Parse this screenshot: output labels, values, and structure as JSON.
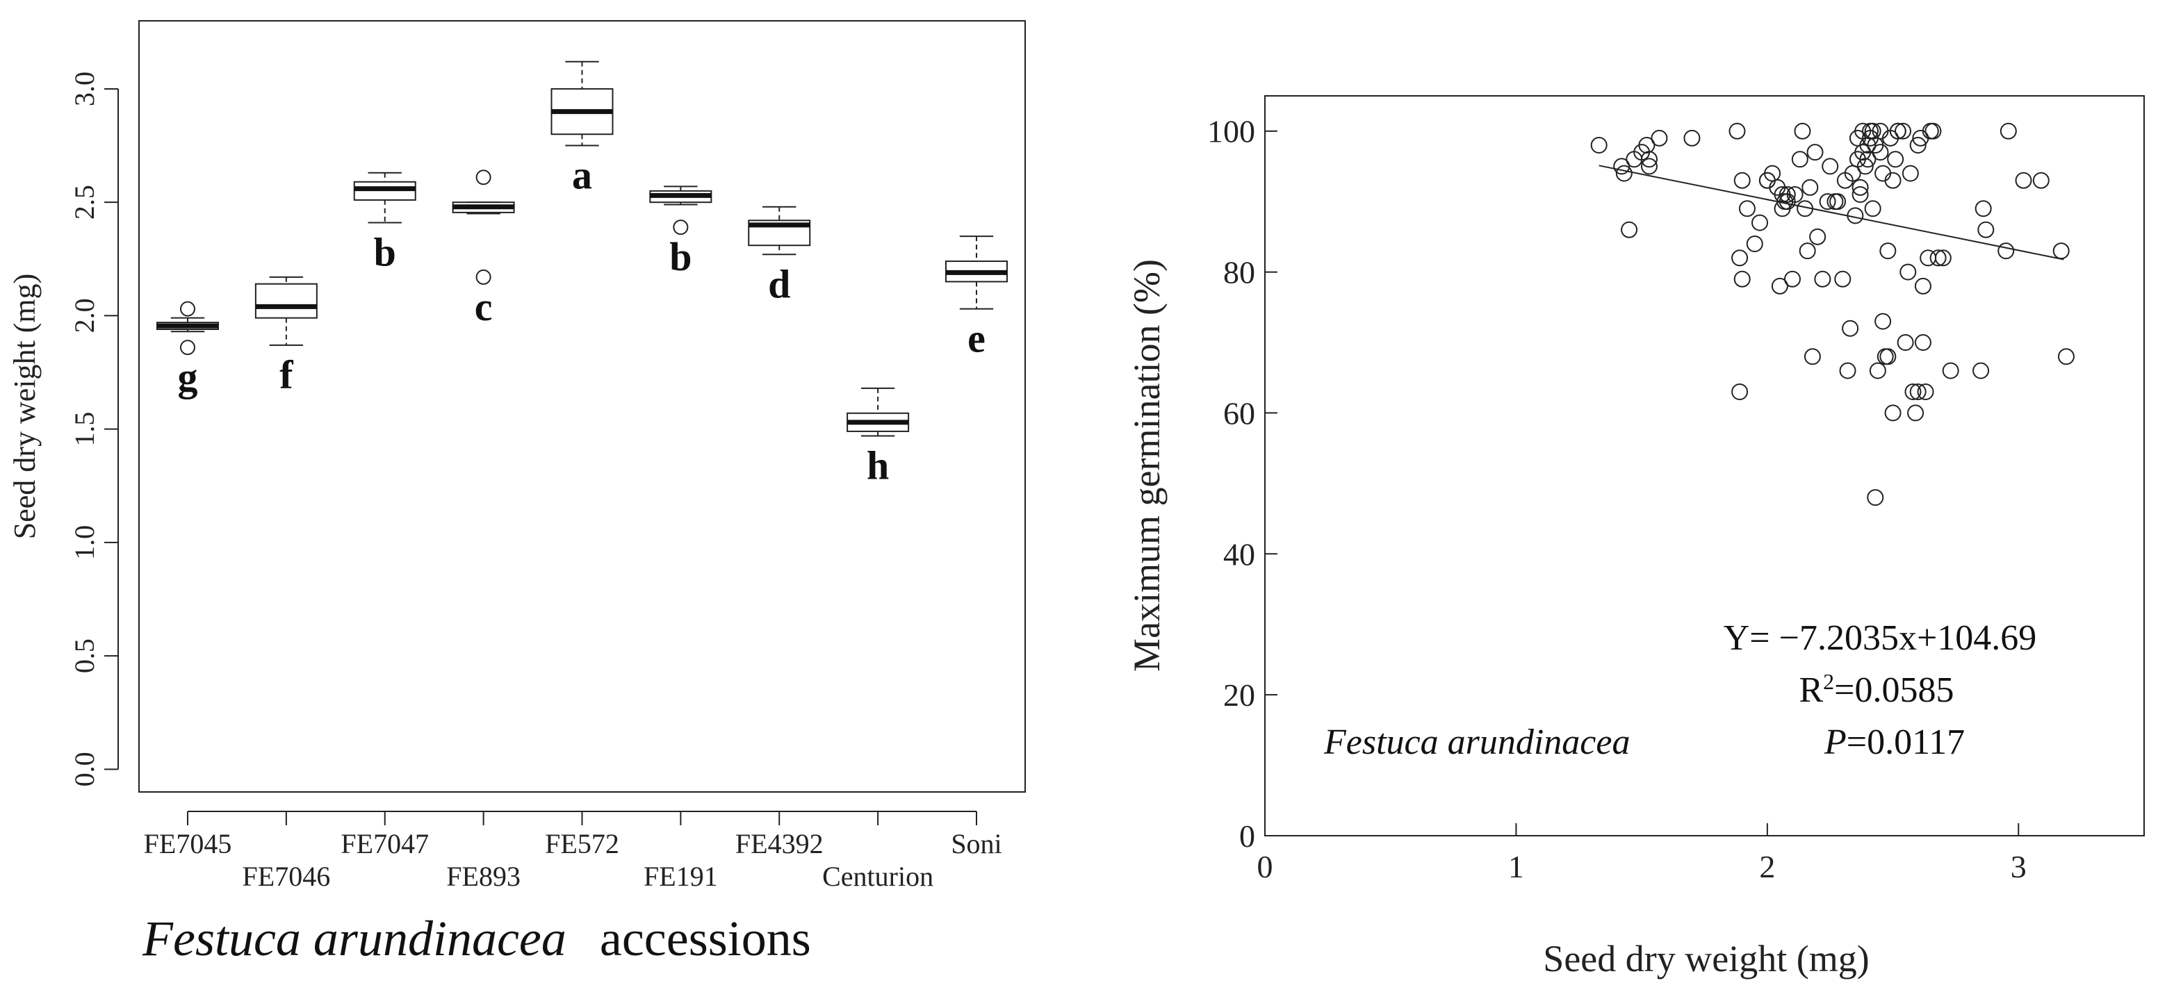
{
  "chart_data": [
    {
      "type": "box",
      "title": "",
      "ylabel": "Seed dry weight (mg)",
      "xlabel_italic": "Festuca arundinacea",
      "xlabel_rest": "accessions",
      "ylim": [
        -0.1,
        3.3
      ],
      "yticks": [
        "0.0",
        "0.5",
        "1.0",
        "1.5",
        "2.0",
        "2.5",
        "3.0"
      ],
      "ytick_values": [
        0,
        0.5,
        1.0,
        1.5,
        2.0,
        2.5,
        3.0
      ],
      "categories": [
        "FE7045",
        "FE7046",
        "FE7047",
        "FE893",
        "FE572",
        "FE191",
        "FE4392",
        "Centurion",
        "Soni"
      ],
      "boxes": [
        {
          "name": "FE7045",
          "whisker_low": 1.93,
          "q1": 1.94,
          "median": 1.955,
          "q3": 1.97,
          "whisker_high": 1.99,
          "outliers": [
            1.86,
            2.03
          ],
          "letter": "g"
        },
        {
          "name": "FE7046",
          "whisker_low": 1.87,
          "q1": 1.99,
          "median": 2.04,
          "q3": 2.14,
          "whisker_high": 2.17,
          "outliers": [],
          "letter": "f"
        },
        {
          "name": "FE7047",
          "whisker_low": 2.41,
          "q1": 2.51,
          "median": 2.56,
          "q3": 2.59,
          "whisker_high": 2.63,
          "outliers": [],
          "letter": "b"
        },
        {
          "name": "FE893",
          "whisker_low": 2.45,
          "q1": 2.455,
          "median": 2.48,
          "q3": 2.5,
          "whisker_high": 2.5,
          "outliers": [
            2.17,
            2.61
          ],
          "letter": "c"
        },
        {
          "name": "FE572",
          "whisker_low": 2.75,
          "q1": 2.8,
          "median": 2.9,
          "q3": 3.0,
          "whisker_high": 3.12,
          "outliers": [],
          "letter": "a"
        },
        {
          "name": "FE191",
          "whisker_low": 2.49,
          "q1": 2.5,
          "median": 2.53,
          "q3": 2.55,
          "whisker_high": 2.57,
          "outliers": [
            2.39
          ],
          "letter": "b"
        },
        {
          "name": "FE4392",
          "whisker_low": 2.27,
          "q1": 2.31,
          "median": 2.4,
          "q3": 2.42,
          "whisker_high": 2.48,
          "outliers": [],
          "letter": "d"
        },
        {
          "name": "Centurion",
          "whisker_low": 1.47,
          "q1": 1.49,
          "median": 1.53,
          "q3": 1.57,
          "whisker_high": 1.68,
          "outliers": [],
          "letter": "h"
        },
        {
          "name": "Soni",
          "whisker_low": 2.03,
          "q1": 2.15,
          "median": 2.19,
          "q3": 2.24,
          "whisker_high": 2.35,
          "outliers": [],
          "letter": "e"
        }
      ]
    },
    {
      "type": "scatter",
      "xlabel": "Seed dry weight (mg)",
      "ylabel": "Maximum germination (%)",
      "xlim": [
        0,
        3.5
      ],
      "ylim": [
        0,
        105
      ],
      "xticks": [
        "0",
        "1",
        "2",
        "3"
      ],
      "xtick_values": [
        0,
        1,
        2,
        3
      ],
      "yticks": [
        "0",
        "20",
        "40",
        "60",
        "80",
        "100"
      ],
      "ytick_values": [
        0,
        20,
        40,
        60,
        80,
        100
      ],
      "fit": {
        "slope": -7.2035,
        "intercept": 104.69,
        "x_range": [
          1.33,
          3.18
        ]
      },
      "equation": "Y= −7.2035x+104.69",
      "r2_prefix": "R",
      "r2_sup": "2",
      "r2_value": "=0.0585",
      "p_label": "P",
      "p_value": "=0.0117",
      "species": "Festuca arundinacea",
      "x": [
        1.33,
        1.42,
        1.43,
        1.45,
        1.47,
        1.5,
        1.52,
        1.53,
        1.53,
        1.57,
        1.7,
        1.88,
        1.89,
        1.89,
        1.9,
        1.9,
        1.92,
        1.95,
        1.97,
        2.0,
        2.0,
        2.02,
        2.04,
        2.05,
        2.06,
        2.06,
        2.07,
        2.08,
        2.08,
        2.1,
        2.11,
        2.13,
        2.14,
        2.15,
        2.16,
        2.17,
        2.18,
        2.19,
        2.2,
        2.22,
        2.24,
        2.25,
        2.27,
        2.28,
        2.3,
        2.31,
        2.32,
        2.33,
        2.34,
        2.35,
        2.36,
        2.36,
        2.37,
        2.37,
        2.38,
        2.38,
        2.39,
        2.4,
        2.4,
        2.41,
        2.41,
        2.42,
        2.42,
        2.43,
        2.43,
        2.44,
        2.45,
        2.45,
        2.46,
        2.46,
        2.47,
        2.48,
        2.48,
        2.49,
        2.5,
        2.5,
        2.51,
        2.52,
        2.52,
        2.54,
        2.55,
        2.56,
        2.57,
        2.58,
        2.59,
        2.6,
        2.6,
        2.61,
        2.62,
        2.62,
        2.63,
        2.64,
        2.65,
        2.66,
        2.68,
        2.7,
        2.73,
        2.85,
        2.86,
        2.87,
        2.95,
        2.96,
        3.02,
        3.09,
        3.17,
        3.19
      ],
      "y": [
        98,
        95,
        94,
        86,
        96,
        97,
        98,
        96,
        95,
        99,
        99,
        100,
        82,
        63,
        93,
        79,
        89,
        84,
        87,
        93,
        93,
        94,
        92,
        78,
        89,
        91,
        90,
        91,
        90,
        79,
        91,
        96,
        100,
        89,
        83,
        92,
        68,
        97,
        85,
        79,
        90,
        95,
        90,
        90,
        79,
        93,
        66,
        72,
        94,
        88,
        96,
        99,
        91,
        92,
        100,
        97,
        95,
        98,
        96,
        100,
        99,
        89,
        100,
        98,
        48,
        66,
        97,
        100,
        94,
        73,
        68,
        83,
        68,
        99,
        93,
        60,
        96,
        100,
        100,
        100,
        70,
        80,
        94,
        63,
        60,
        98,
        63,
        99,
        78,
        70,
        63,
        82,
        100,
        100,
        82,
        82,
        66,
        66,
        89,
        86,
        83,
        100,
        93,
        93,
        83,
        68
      ]
    }
  ]
}
